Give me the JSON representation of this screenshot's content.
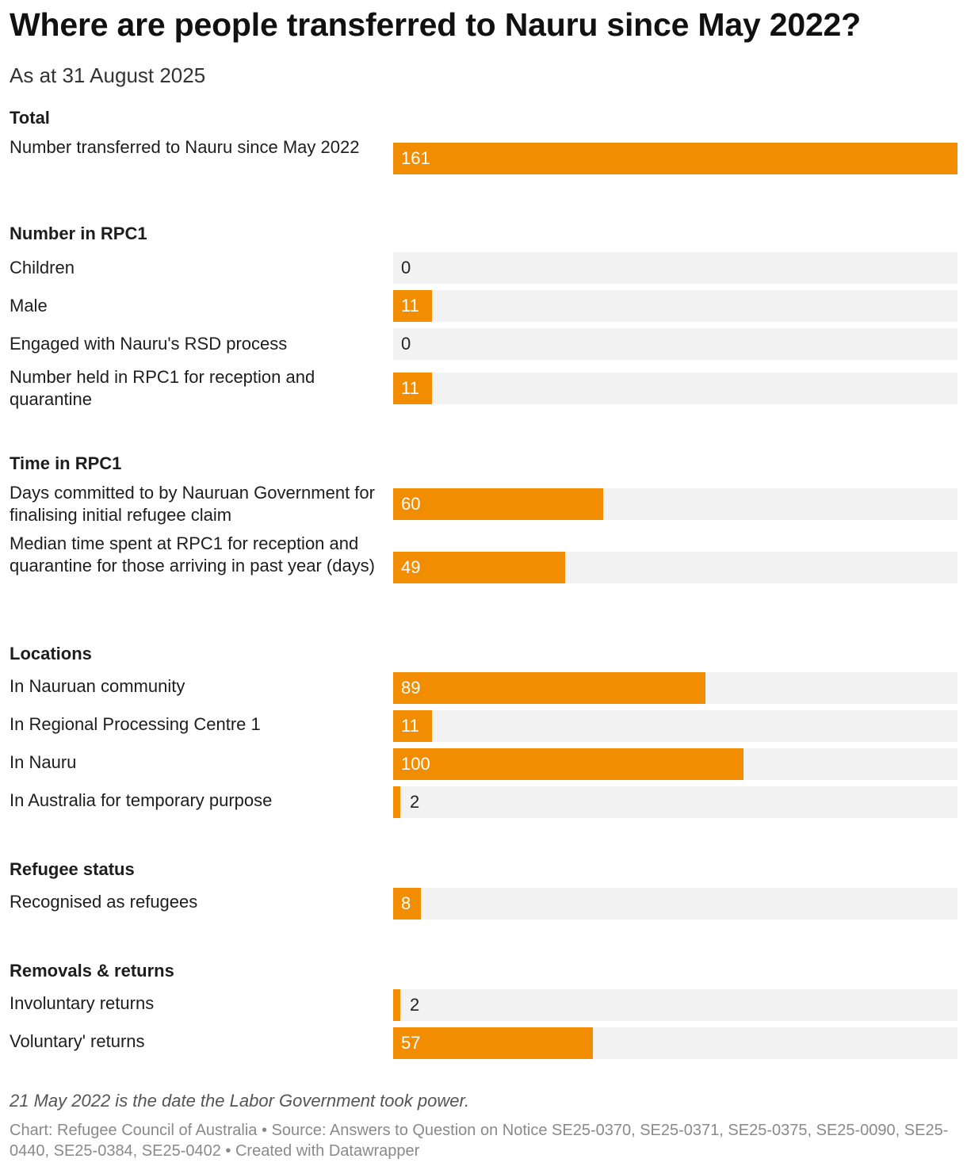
{
  "chart_data": {
    "type": "bar",
    "orientation": "horizontal",
    "title": "Where are people transferred to Nauru since May 2022?",
    "subtitle": "As at 31 August 2025",
    "max_value": 161,
    "bar_color": "#f28c00",
    "track_color": "#f2f2f2",
    "groups": [
      {
        "heading": "Total",
        "rows": [
          {
            "label": "Number transferred to Nauru since May 2022",
            "value": 161
          }
        ]
      },
      {
        "heading": "Number in RPC1",
        "rows": [
          {
            "label": "Children",
            "value": 0
          },
          {
            "label": "Male",
            "value": 11
          },
          {
            "label": "Engaged with Nauru's RSD process",
            "value": 0
          },
          {
            "label": "Number held in RPC1 for reception and quarantine",
            "value": 11
          }
        ]
      },
      {
        "heading": "Time in RPC1",
        "rows": [
          {
            "label": "Days committed to by Nauruan Government for finalising initial refugee claim",
            "value": 60
          },
          {
            "label": "Median time spent at RPC1 for reception and quarantine for those arriving in past year (days)",
            "value": 49
          }
        ]
      },
      {
        "heading": "Locations",
        "rows": [
          {
            "label": "In Nauruan community",
            "value": 89
          },
          {
            "label": "In Regional Processing Centre 1",
            "value": 11
          },
          {
            "label": "In Nauru",
            "value": 100
          },
          {
            "label": "In Australia for temporary purpose",
            "value": 2
          }
        ]
      },
      {
        "heading": "Refugee status",
        "rows": [
          {
            "label": "Recognised as refugees",
            "value": 8
          }
        ]
      },
      {
        "heading": "Removals & returns",
        "rows": [
          {
            "label": "Involuntary returns",
            "value": 2
          },
          {
            "label": "Voluntary' returns",
            "value": 57
          }
        ]
      }
    ]
  },
  "notes": "21 May 2022 is the date the Labor Government took power.",
  "footer": "Chart: Refugee Council of Australia • Source: Answers to Question on Notice SE25-0370, SE25-0371, SE25-0375, SE25-0090, SE25-0440, SE25-0384, SE25-0402 • Created with Datawrapper"
}
